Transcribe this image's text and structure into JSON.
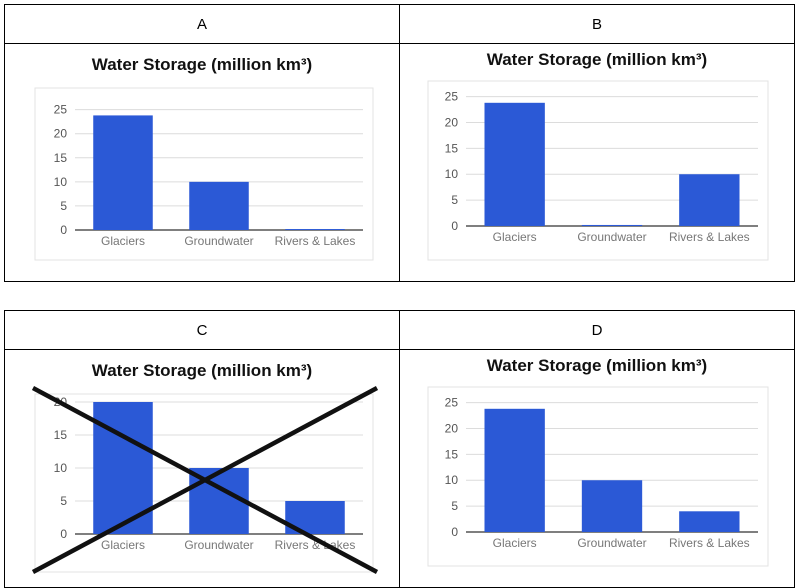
{
  "panels": [
    {
      "label": "A"
    },
    {
      "label": "B"
    },
    {
      "label": "C"
    },
    {
      "label": "D"
    }
  ],
  "chart_data": [
    {
      "type": "bar",
      "title": "Water Storage (million km³)",
      "categories": [
        "Glaciers",
        "Groundwater",
        "Rivers & Lakes"
      ],
      "values": [
        23.8,
        10,
        0.2
      ],
      "yticks": [
        0,
        5,
        10,
        15,
        20,
        25
      ],
      "ylim": [
        0,
        27
      ],
      "grid": true,
      "color": "#2b59d6"
    },
    {
      "type": "bar",
      "title": "Water Storage (million km³)",
      "categories": [
        "Glaciers",
        "Groundwater",
        "Rivers & Lakes"
      ],
      "values": [
        23.8,
        0.2,
        10
      ],
      "yticks": [
        0,
        5,
        10,
        15,
        20,
        25
      ],
      "ylim": [
        0,
        25.5
      ],
      "grid": true,
      "color": "#2b59d6"
    },
    {
      "type": "bar",
      "title": "Water Storage (million km³)",
      "categories": [
        "Glaciers",
        "Groundwater",
        "Rivers & Lakes"
      ],
      "values": [
        20,
        10,
        5
      ],
      "yticks": [
        0,
        5,
        10,
        15,
        20
      ],
      "ylim": [
        0,
        20
      ],
      "grid": true,
      "crossed_out": true,
      "color": "#2b59d6"
    },
    {
      "type": "bar",
      "title": "Water Storage (million km³)",
      "categories": [
        "Glaciers",
        "Groundwater",
        "Rivers & Lakes"
      ],
      "values": [
        23.8,
        10,
        4
      ],
      "yticks": [
        0,
        5,
        10,
        15,
        20,
        25
      ],
      "ylim": [
        0,
        25.5
      ],
      "grid": true,
      "color": "#2b59d6"
    }
  ]
}
